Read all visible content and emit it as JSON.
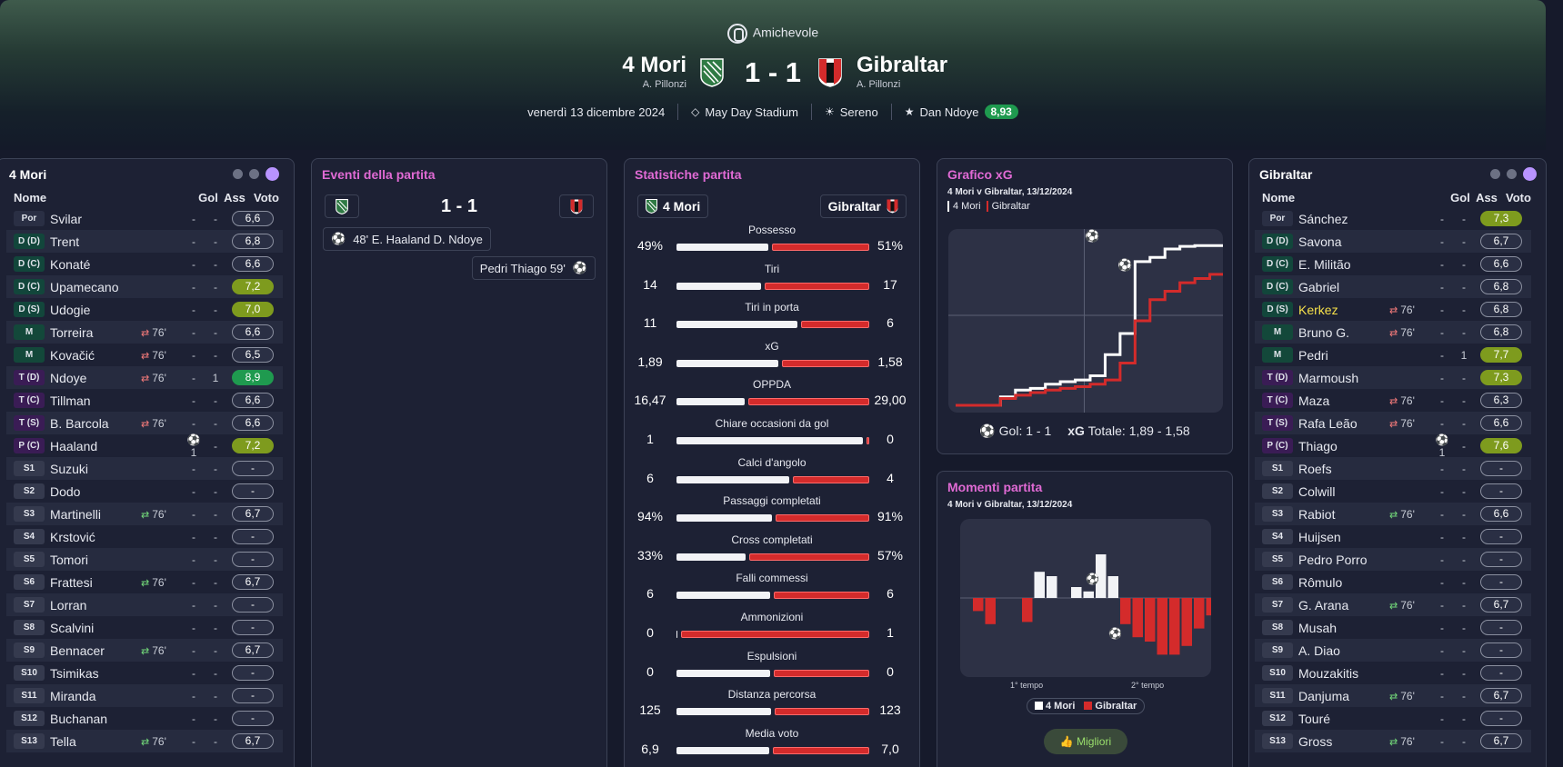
{
  "header": {
    "competition": "Amichevole",
    "home_team": "4 Mori",
    "home_manager": "A. Pillonzi",
    "away_team": "Gibraltar",
    "away_manager": "A. Pillonzi",
    "score": "1 - 1",
    "date": "venerdì 13 dicembre 2024",
    "stadium": "May Day Stadium",
    "weather": "Sereno",
    "motm_name": "Dan Ndoye",
    "motm_rating": "8,93"
  },
  "colors": {
    "home": "#ffffff",
    "away": "#d42b2b",
    "accent": "#e06ad4",
    "pos_gk": "#1d2134",
    "pos_def": "#12463b",
    "pos_mid": "#13483a",
    "pos_att": "#3a1c55",
    "rating_green": "#1f9a4f",
    "rating_olive": "#7e9b1e"
  },
  "home_panel": {
    "title": "4 Mori",
    "col_name": "Nome",
    "col_goals": "Gol",
    "col_assists": "Ass",
    "col_rating": "Voto",
    "players": [
      {
        "pos": "Por",
        "name": "Svilar",
        "goals": "-",
        "assists": "-",
        "rating": "6,6",
        "sub": "",
        "subtype": "",
        "style": "plain"
      },
      {
        "pos": "D (D)",
        "name": "Trent",
        "goals": "-",
        "assists": "-",
        "rating": "6,8",
        "sub": "",
        "subtype": "",
        "style": "plain"
      },
      {
        "pos": "D (C)",
        "name": "Konaté",
        "goals": "-",
        "assists": "-",
        "rating": "6,6",
        "sub": "",
        "subtype": "",
        "style": "plain"
      },
      {
        "pos": "D (C)",
        "name": "Upamecano",
        "goals": "-",
        "assists": "-",
        "rating": "7,2",
        "sub": "",
        "subtype": "",
        "style": "olive"
      },
      {
        "pos": "D (S)",
        "name": "Udogie",
        "goals": "-",
        "assists": "-",
        "rating": "7,0",
        "sub": "",
        "subtype": "",
        "style": "olive"
      },
      {
        "pos": "M",
        "name": "Torreira",
        "goals": "-",
        "assists": "-",
        "rating": "6,6",
        "sub": "76'",
        "subtype": "out",
        "style": "plain"
      },
      {
        "pos": "M",
        "name": "Kovačić",
        "goals": "-",
        "assists": "-",
        "rating": "6,5",
        "sub": "76'",
        "subtype": "out",
        "style": "plain"
      },
      {
        "pos": "T (D)",
        "name": "Ndoye",
        "goals": "-",
        "assists": "1",
        "rating": "8,9",
        "sub": "76'",
        "subtype": "out",
        "style": "green"
      },
      {
        "pos": "T (C)",
        "name": "Tillman",
        "goals": "-",
        "assists": "-",
        "rating": "6,6",
        "sub": "",
        "subtype": "",
        "style": "plain"
      },
      {
        "pos": "T (S)",
        "name": "B. Barcola",
        "goals": "-",
        "assists": "-",
        "rating": "6,6",
        "sub": "76'",
        "subtype": "out",
        "style": "plain"
      },
      {
        "pos": "P (C)",
        "name": "Haaland",
        "goals": "⚽1",
        "assists": "-",
        "rating": "7,2",
        "sub": "",
        "subtype": "",
        "style": "olive"
      },
      {
        "pos": "S1",
        "name": "Suzuki",
        "goals": "-",
        "assists": "-",
        "rating": "-",
        "sub": "",
        "subtype": "",
        "style": "plain"
      },
      {
        "pos": "S2",
        "name": "Dodo",
        "goals": "-",
        "assists": "-",
        "rating": "-",
        "sub": "",
        "subtype": "",
        "style": "plain"
      },
      {
        "pos": "S3",
        "name": "Martinelli",
        "goals": "-",
        "assists": "-",
        "rating": "6,7",
        "sub": "76'",
        "subtype": "in",
        "style": "plain"
      },
      {
        "pos": "S4",
        "name": "Krstović",
        "goals": "-",
        "assists": "-",
        "rating": "-",
        "sub": "",
        "subtype": "",
        "style": "plain"
      },
      {
        "pos": "S5",
        "name": "Tomori",
        "goals": "-",
        "assists": "-",
        "rating": "-",
        "sub": "",
        "subtype": "",
        "style": "plain"
      },
      {
        "pos": "S6",
        "name": "Frattesi",
        "goals": "-",
        "assists": "-",
        "rating": "6,7",
        "sub": "76'",
        "subtype": "in",
        "style": "plain"
      },
      {
        "pos": "S7",
        "name": "Lorran",
        "goals": "-",
        "assists": "-",
        "rating": "-",
        "sub": "",
        "subtype": "",
        "style": "plain"
      },
      {
        "pos": "S8",
        "name": "Scalvini",
        "goals": "-",
        "assists": "-",
        "rating": "-",
        "sub": "",
        "subtype": "",
        "style": "plain"
      },
      {
        "pos": "S9",
        "name": "Bennacer",
        "goals": "-",
        "assists": "-",
        "rating": "6,7",
        "sub": "76'",
        "subtype": "in",
        "style": "plain"
      },
      {
        "pos": "S10",
        "name": "Tsimikas",
        "goals": "-",
        "assists": "-",
        "rating": "-",
        "sub": "",
        "subtype": "",
        "style": "plain"
      },
      {
        "pos": "S11",
        "name": "Miranda",
        "goals": "-",
        "assists": "-",
        "rating": "-",
        "sub": "",
        "subtype": "",
        "style": "plain"
      },
      {
        "pos": "S12",
        "name": "Buchanan",
        "goals": "-",
        "assists": "-",
        "rating": "-",
        "sub": "",
        "subtype": "",
        "style": "plain"
      },
      {
        "pos": "S13",
        "name": "Tella",
        "goals": "-",
        "assists": "-",
        "rating": "6,7",
        "sub": "76'",
        "subtype": "in",
        "style": "plain"
      }
    ]
  },
  "away_panel": {
    "title": "Gibraltar",
    "col_name": "Nome",
    "col_goals": "Gol",
    "col_assists": "Ass",
    "col_rating": "Voto",
    "players": [
      {
        "pos": "Por",
        "name": "Sánchez",
        "goals": "-",
        "assists": "-",
        "rating": "7,3",
        "sub": "",
        "subtype": "",
        "style": "olive"
      },
      {
        "pos": "D (D)",
        "name": "Savona",
        "goals": "-",
        "assists": "-",
        "rating": "6,7",
        "sub": "",
        "subtype": "",
        "style": "plain"
      },
      {
        "pos": "D (C)",
        "name": "E. Militão",
        "goals": "-",
        "assists": "-",
        "rating": "6,6",
        "sub": "",
        "subtype": "",
        "style": "plain"
      },
      {
        "pos": "D (C)",
        "name": "Gabriel",
        "goals": "-",
        "assists": "-",
        "rating": "6,8",
        "sub": "",
        "subtype": "",
        "style": "plain"
      },
      {
        "pos": "D (S)",
        "name": "Kerkez",
        "goals": "-",
        "assists": "-",
        "rating": "6,8",
        "sub": "76'",
        "subtype": "out",
        "style": "plain",
        "highlight": true
      },
      {
        "pos": "M",
        "name": "Bruno G.",
        "goals": "-",
        "assists": "-",
        "rating": "6,8",
        "sub": "76'",
        "subtype": "out",
        "style": "plain"
      },
      {
        "pos": "M",
        "name": "Pedri",
        "goals": "-",
        "assists": "1",
        "rating": "7,7",
        "sub": "",
        "subtype": "",
        "style": "olive"
      },
      {
        "pos": "T (D)",
        "name": "Marmoush",
        "goals": "-",
        "assists": "-",
        "rating": "7,3",
        "sub": "",
        "subtype": "",
        "style": "olive"
      },
      {
        "pos": "T (C)",
        "name": "Maza",
        "goals": "-",
        "assists": "-",
        "rating": "6,3",
        "sub": "76'",
        "subtype": "out",
        "style": "plain"
      },
      {
        "pos": "T (S)",
        "name": "Rafa Leão",
        "goals": "-",
        "assists": "-",
        "rating": "6,6",
        "sub": "76'",
        "subtype": "out",
        "style": "plain"
      },
      {
        "pos": "P (C)",
        "name": "Thiago",
        "goals": "⚽1",
        "assists": "-",
        "rating": "7,6",
        "sub": "",
        "subtype": "",
        "style": "olive"
      },
      {
        "pos": "S1",
        "name": "Roefs",
        "goals": "-",
        "assists": "-",
        "rating": "-",
        "sub": "",
        "subtype": "",
        "style": "plain"
      },
      {
        "pos": "S2",
        "name": "Colwill",
        "goals": "-",
        "assists": "-",
        "rating": "-",
        "sub": "",
        "subtype": "",
        "style": "plain"
      },
      {
        "pos": "S3",
        "name": "Rabiot",
        "goals": "-",
        "assists": "-",
        "rating": "6,6",
        "sub": "76'",
        "subtype": "in",
        "style": "plain"
      },
      {
        "pos": "S4",
        "name": "Huijsen",
        "goals": "-",
        "assists": "-",
        "rating": "-",
        "sub": "",
        "subtype": "",
        "style": "plain"
      },
      {
        "pos": "S5",
        "name": "Pedro Porro",
        "goals": "-",
        "assists": "-",
        "rating": "-",
        "sub": "",
        "subtype": "",
        "style": "plain"
      },
      {
        "pos": "S6",
        "name": "Rômulo",
        "goals": "-",
        "assists": "-",
        "rating": "-",
        "sub": "",
        "subtype": "",
        "style": "plain"
      },
      {
        "pos": "S7",
        "name": "G. Arana",
        "goals": "-",
        "assists": "-",
        "rating": "6,7",
        "sub": "76'",
        "subtype": "in",
        "style": "plain"
      },
      {
        "pos": "S8",
        "name": "Musah",
        "goals": "-",
        "assists": "-",
        "rating": "-",
        "sub": "",
        "subtype": "",
        "style": "plain"
      },
      {
        "pos": "S9",
        "name": "A. Diao",
        "goals": "-",
        "assists": "-",
        "rating": "-",
        "sub": "",
        "subtype": "",
        "style": "plain"
      },
      {
        "pos": "S10",
        "name": "Mouzakitis",
        "goals": "-",
        "assists": "-",
        "rating": "-",
        "sub": "",
        "subtype": "",
        "style": "plain"
      },
      {
        "pos": "S11",
        "name": "Danjuma",
        "goals": "-",
        "assists": "-",
        "rating": "6,7",
        "sub": "76'",
        "subtype": "in",
        "style": "plain"
      },
      {
        "pos": "S12",
        "name": "Touré",
        "goals": "-",
        "assists": "-",
        "rating": "-",
        "sub": "",
        "subtype": "",
        "style": "plain"
      },
      {
        "pos": "S13",
        "name": "Gross",
        "goals": "-",
        "assists": "-",
        "rating": "6,7",
        "sub": "76'",
        "subtype": "in",
        "style": "plain"
      }
    ]
  },
  "events_panel": {
    "title": "Eventi della partita",
    "score": "1 - 1",
    "events": [
      {
        "side": "home",
        "text": "48' E. Haaland D. Ndoye"
      },
      {
        "side": "away",
        "text": "Pedri Thiago 59'"
      }
    ]
  },
  "stats_panel": {
    "title": "Statistiche partita",
    "home": "4 Mori",
    "away": "Gibraltar",
    "stats": [
      {
        "label": "Possesso",
        "home": "49%",
        "away": "51%",
        "hv": 49,
        "av": 51
      },
      {
        "label": "Tiri",
        "home": "14",
        "away": "17",
        "hv": 14,
        "av": 17
      },
      {
        "label": "Tiri in porta",
        "home": "11",
        "away": "6",
        "hv": 11,
        "av": 6
      },
      {
        "label": "xG",
        "home": "1,89",
        "away": "1,58",
        "hv": 1.89,
        "av": 1.58
      },
      {
        "label": "OPPDA",
        "home": "16,47",
        "away": "29,00",
        "hv": 16.47,
        "av": 29
      },
      {
        "label": "Chiare occasioni da gol",
        "home": "1",
        "away": "0",
        "hv": 1,
        "av": 0
      },
      {
        "label": "Calci d'angolo",
        "home": "6",
        "away": "4",
        "hv": 6,
        "av": 4
      },
      {
        "label": "Passaggi completati",
        "home": "94%",
        "away": "91%",
        "hv": 94,
        "av": 91
      },
      {
        "label": "Cross completati",
        "home": "33%",
        "away": "57%",
        "hv": 33,
        "av": 57
      },
      {
        "label": "Falli commessi",
        "home": "6",
        "away": "6",
        "hv": 6,
        "av": 6
      },
      {
        "label": "Ammonizioni",
        "home": "0",
        "away": "1",
        "hv": 0,
        "av": 1
      },
      {
        "label": "Espulsioni",
        "home": "0",
        "away": "0",
        "hv": 0,
        "av": 0
      },
      {
        "label": "Distanza percorsa",
        "home": "125",
        "away": "123",
        "hv": 125,
        "av": 123
      },
      {
        "label": "Media voto",
        "home": "6,9",
        "away": "7,0",
        "hv": 6.9,
        "av": 7.0
      }
    ]
  },
  "xg_panel": {
    "title": "Grafico xG",
    "subtitle": "4 Mori v Gibraltar, 13/12/2024",
    "legend_home": "4 Mori",
    "legend_away": "Gibraltar",
    "goals_label": "Gol: 1 - 1",
    "xg_label": "xG",
    "xg_total": "Totale: 1,89 - 1,58"
  },
  "moments_panel": {
    "title": "Momenti partita",
    "subtitle": "4 Mori v Gibraltar, 13/12/2024",
    "first_half": "1° tempo",
    "second_half": "2° tempo",
    "legend_home": "4 Mori",
    "legend_away": "Gibraltar",
    "best_button": "Migliori"
  },
  "chart_data": [
    {
      "type": "line",
      "title": "Grafico xG",
      "series": [
        {
          "name": "4 Mori",
          "x": [
            0,
            5,
            10,
            15,
            20,
            25,
            30,
            35,
            40,
            45,
            50,
            55,
            60,
            65,
            70,
            75,
            80,
            85,
            90
          ],
          "y": [
            0,
            0,
            0,
            0.1,
            0.18,
            0.2,
            0.25,
            0.28,
            0.3,
            0.35,
            0.6,
            0.85,
            1.7,
            1.75,
            1.85,
            1.88,
            1.89,
            1.89,
            1.89
          ]
        },
        {
          "name": "Gibraltar",
          "x": [
            0,
            5,
            10,
            15,
            20,
            25,
            30,
            35,
            40,
            45,
            50,
            55,
            60,
            65,
            70,
            75,
            80,
            85,
            90
          ],
          "y": [
            0,
            0,
            0,
            0.08,
            0.12,
            0.15,
            0.18,
            0.2,
            0.22,
            0.25,
            0.3,
            0.5,
            1.0,
            1.25,
            1.35,
            1.45,
            1.5,
            1.55,
            1.58
          ]
        }
      ]
    },
    {
      "type": "bar",
      "title": "Momenti partita",
      "series": [
        {
          "name": "4 Mori",
          "values": [
            0,
            0,
            0,
            0,
            0,
            0.6,
            0.5,
            0,
            0.25,
            0.15,
            1,
            0.5,
            0,
            0,
            0,
            0,
            0,
            0,
            0,
            0,
            1
          ]
        },
        {
          "name": "Gibraltar",
          "values": [
            0.3,
            0.6,
            0,
            0,
            0.55,
            0,
            0,
            0,
            0,
            0,
            0,
            0,
            0.6,
            0.9,
            1.0,
            1.3,
            1.3,
            1.1,
            0.7,
            0.4,
            0
          ]
        }
      ]
    }
  ]
}
